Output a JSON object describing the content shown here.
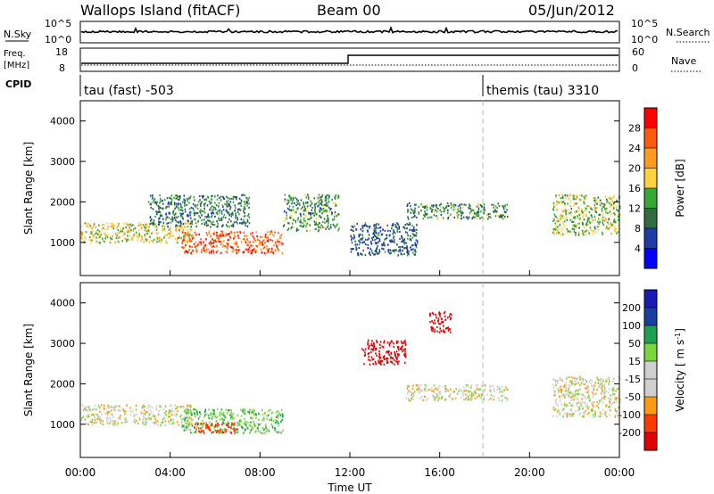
{
  "header": {
    "title": "Wallops Island (fitACF)",
    "beam": "Beam 00",
    "date": "05/Jun/2012"
  },
  "status_panels": {
    "nsky_label": "N.Sky",
    "nsearch_label": "N.Search",
    "noise_ticks": [
      "10^5",
      "10^0"
    ],
    "freq_label": "Freq.",
    "freq_unit": "[MHz]",
    "freq_ticks": [
      "18",
      "8"
    ],
    "nave_label": "Nave",
    "nave_ticks": [
      "60",
      "0"
    ],
    "cpid_label": "CPID",
    "cpid_programs": [
      {
        "name": "tau (fast) -503",
        "start": "00:00"
      },
      {
        "name": "themis (tau) 3310",
        "start": "18:00"
      }
    ]
  },
  "colors": {
    "power_scale": [
      "#0000ff",
      "#1e3ca6",
      "#2f6d3e",
      "#36a836",
      "#ffd23c",
      "#ff9b1e",
      "#ff5a10",
      "#ff0000"
    ],
    "velocity_scale": [
      "#e00000",
      "#ff3a00",
      "#ff9a10",
      "#cfcfcf",
      "#cfcfcf",
      "#7ad63a",
      "#1ea050",
      "#1a3fa0",
      "#1a1ab4"
    ],
    "line": "#000000"
  },
  "chart_data": [
    {
      "type": "heatmap",
      "panel": "power",
      "xlabel": "Time UT",
      "ylabel": "Slant Range [km]",
      "xlim": [
        "00:00",
        "24:00"
      ],
      "ylim": [
        180,
        4500
      ],
      "x_tick_labels": [
        "00:00",
        "04:00",
        "08:00",
        "12:00",
        "16:00",
        "20:00",
        "00:00"
      ],
      "y_tick_labels": [
        "4000",
        "3000",
        "2000",
        "1000"
      ],
      "y_ticks": [
        4000,
        3000,
        2000,
        1000
      ],
      "colorbar": {
        "label": "Power [dB]",
        "ticks": [
          "28",
          "24",
          "20",
          "16",
          "12",
          "8",
          "4"
        ],
        "range": [
          0,
          32
        ]
      },
      "echo_regions": [
        {
          "start": "00:00",
          "end": "05:00",
          "range_low": 1000,
          "range_high": 1500,
          "level": 18
        },
        {
          "start": "04:30",
          "end": "09:00",
          "range_low": 750,
          "range_high": 1300,
          "level": 26
        },
        {
          "start": "03:00",
          "end": "07:30",
          "range_low": 1400,
          "range_high": 2200,
          "level": 10
        },
        {
          "start": "09:00",
          "end": "11:30",
          "range_low": 1300,
          "range_high": 2200,
          "level": 12
        },
        {
          "start": "12:00",
          "end": "15:00",
          "range_low": 700,
          "range_high": 1500,
          "level": 8
        },
        {
          "start": "14:30",
          "end": "19:00",
          "range_low": 1600,
          "range_high": 2000,
          "level": 12
        },
        {
          "start": "21:00",
          "end": "24:00",
          "range_low": 1200,
          "range_high": 2200,
          "level": 16
        }
      ]
    },
    {
      "type": "heatmap",
      "panel": "velocity",
      "xlabel": "Time UT",
      "ylabel": "Slant Range [km]",
      "xlim": [
        "00:00",
        "24:00"
      ],
      "ylim": [
        180,
        4500
      ],
      "x_tick_labels": [
        "00:00",
        "04:00",
        "08:00",
        "12:00",
        "16:00",
        "20:00",
        "00:00"
      ],
      "y_tick_labels": [
        "4000",
        "3000",
        "2000",
        "1000"
      ],
      "y_ticks": [
        4000,
        3000,
        2000,
        1000
      ],
      "colorbar": {
        "label": "Velocity [m s-1]",
        "label_main": "Velocity",
        "label_units": "[ m s",
        "label_exp": "-1",
        "label_close": "]",
        "ticks": [
          "200",
          "100",
          "50",
          "15",
          "-15",
          "-50",
          "-100",
          "-200"
        ]
      },
      "echo_regions": [
        {
          "start": "00:00",
          "end": "05:00",
          "range_low": 1000,
          "range_high": 1500,
          "velocity": 0
        },
        {
          "start": "04:30",
          "end": "09:00",
          "range_low": 800,
          "range_high": 1400,
          "velocity": 40
        },
        {
          "start": "05:00",
          "end": "07:00",
          "range_low": 800,
          "range_high": 1050,
          "velocity": -80
        },
        {
          "start": "12:30",
          "end": "14:30",
          "range_low": 2500,
          "range_high": 3100,
          "velocity": -200
        },
        {
          "start": "15:30",
          "end": "16:30",
          "range_low": 3300,
          "range_high": 3800,
          "velocity": -200
        },
        {
          "start": "14:30",
          "end": "19:00",
          "range_low": 1600,
          "range_high": 2000,
          "velocity": 0
        },
        {
          "start": "21:00",
          "end": "24:00",
          "range_low": 1200,
          "range_high": 2200,
          "velocity": 0
        }
      ]
    }
  ]
}
